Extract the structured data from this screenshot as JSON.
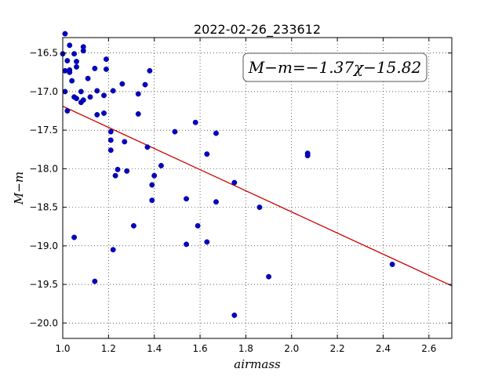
{
  "chart_data": {
    "type": "scatter",
    "title": "2022-02-26_233612",
    "xlabel": "airmass",
    "ylabel": "M−m",
    "xlim": [
      1.0,
      2.7
    ],
    "ylim": [
      -20.2,
      -16.3
    ],
    "xticks": [
      1.0,
      1.2,
      1.4,
      1.6,
      1.8,
      2.0,
      2.2,
      2.4,
      2.6
    ],
    "xtick_labels": [
      "1.0",
      "1.2",
      "1.4",
      "1.6",
      "1.8",
      "2.0",
      "2.2",
      "2.4",
      "2.6"
    ],
    "yticks": [
      -16.5,
      -17.0,
      -17.5,
      -18.0,
      -18.5,
      -19.0,
      -19.5,
      -20.0
    ],
    "ytick_labels": [
      "−16.5",
      "−17.0",
      "−17.5",
      "−18.0",
      "−18.5",
      "−19.0",
      "−19.5",
      "−20.0"
    ],
    "grid": true,
    "annotation": "M−m=−1.37χ−15.82",
    "annotation_position": "top-right",
    "fit": {
      "slope": -1.37,
      "intercept": -15.82,
      "x_range": [
        1.0,
        2.7
      ],
      "color": "#cc0000"
    },
    "marker_color": "#0000c8",
    "points": [
      {
        "x": 1.0,
        "y": -16.51
      },
      {
        "x": 1.01,
        "y": -16.73
      },
      {
        "x": 1.01,
        "y": -17.0
      },
      {
        "x": 1.01,
        "y": -16.25
      },
      {
        "x": 1.02,
        "y": -16.6
      },
      {
        "x": 1.02,
        "y": -17.25
      },
      {
        "x": 1.03,
        "y": -16.4
      },
      {
        "x": 1.03,
        "y": -16.75
      },
      {
        "x": 1.03,
        "y": -16.72
      },
      {
        "x": 1.04,
        "y": -16.86
      },
      {
        "x": 1.05,
        "y": -16.51
      },
      {
        "x": 1.05,
        "y": -17.07
      },
      {
        "x": 1.05,
        "y": -18.89
      },
      {
        "x": 1.06,
        "y": -16.61
      },
      {
        "x": 1.06,
        "y": -16.68
      },
      {
        "x": 1.06,
        "y": -17.09
      },
      {
        "x": 1.08,
        "y": -17.0
      },
      {
        "x": 1.08,
        "y": -17.14
      },
      {
        "x": 1.09,
        "y": -16.42
      },
      {
        "x": 1.09,
        "y": -16.47
      },
      {
        "x": 1.09,
        "y": -17.11
      },
      {
        "x": 1.11,
        "y": -16.83
      },
      {
        "x": 1.12,
        "y": -17.07
      },
      {
        "x": 1.14,
        "y": -16.7
      },
      {
        "x": 1.14,
        "y": -19.46
      },
      {
        "x": 1.15,
        "y": -17.3
      },
      {
        "x": 1.15,
        "y": -16.99
      },
      {
        "x": 1.18,
        "y": -17.28
      },
      {
        "x": 1.18,
        "y": -17.05
      },
      {
        "x": 1.19,
        "y": -16.58
      },
      {
        "x": 1.19,
        "y": -16.71
      },
      {
        "x": 1.21,
        "y": -17.52
      },
      {
        "x": 1.21,
        "y": -17.63
      },
      {
        "x": 1.21,
        "y": -17.76
      },
      {
        "x": 1.22,
        "y": -16.99
      },
      {
        "x": 1.22,
        "y": -19.05
      },
      {
        "x": 1.23,
        "y": -18.09
      },
      {
        "x": 1.24,
        "y": -18.01
      },
      {
        "x": 1.26,
        "y": -16.9
      },
      {
        "x": 1.27,
        "y": -17.65
      },
      {
        "x": 1.28,
        "y": -18.03
      },
      {
        "x": 1.31,
        "y": -18.74
      },
      {
        "x": 1.33,
        "y": -17.03
      },
      {
        "x": 1.33,
        "y": -17.29
      },
      {
        "x": 1.36,
        "y": -16.91
      },
      {
        "x": 1.37,
        "y": -17.72
      },
      {
        "x": 1.38,
        "y": -16.73
      },
      {
        "x": 1.39,
        "y": -18.21
      },
      {
        "x": 1.39,
        "y": -18.41
      },
      {
        "x": 1.4,
        "y": -18.09
      },
      {
        "x": 1.43,
        "y": -17.96
      },
      {
        "x": 1.49,
        "y": -17.52
      },
      {
        "x": 1.54,
        "y": -18.39
      },
      {
        "x": 1.54,
        "y": -18.98
      },
      {
        "x": 1.58,
        "y": -17.4
      },
      {
        "x": 1.59,
        "y": -18.74
      },
      {
        "x": 1.63,
        "y": -17.81
      },
      {
        "x": 1.63,
        "y": -18.95
      },
      {
        "x": 1.67,
        "y": -17.54
      },
      {
        "x": 1.67,
        "y": -18.43
      },
      {
        "x": 1.75,
        "y": -18.18
      },
      {
        "x": 1.75,
        "y": -19.9
      },
      {
        "x": 1.86,
        "y": -18.5
      },
      {
        "x": 1.9,
        "y": -19.4
      },
      {
        "x": 2.07,
        "y": -17.8
      },
      {
        "x": 2.07,
        "y": -17.83
      },
      {
        "x": 2.44,
        "y": -19.24
      }
    ]
  }
}
